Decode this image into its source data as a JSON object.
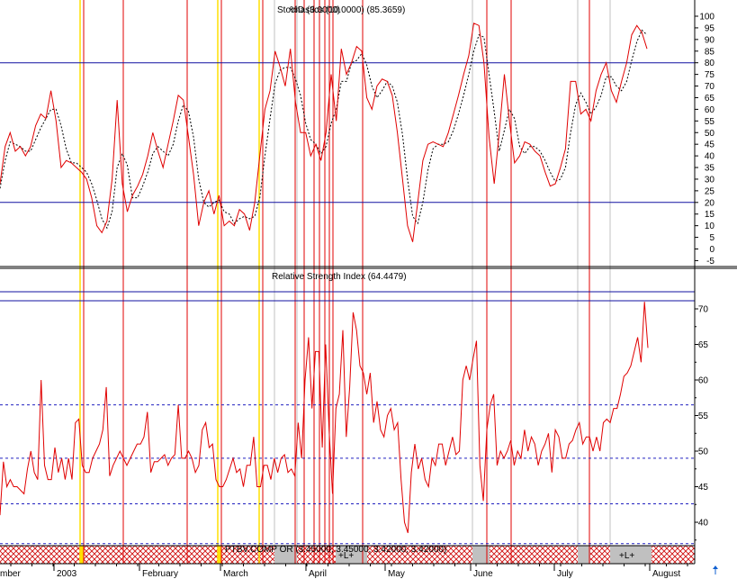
{
  "chart_data": [
    {
      "type": "line",
      "title": "Stochastics (10.0000) (85.3659)",
      "title_overlap": "%D (3.0000)",
      "y_ticks": [
        100,
        95,
        90,
        85,
        80,
        75,
        70,
        65,
        60,
        55,
        50,
        45,
        40,
        35,
        30,
        25,
        20,
        15,
        10,
        5,
        0,
        -5
      ],
      "ylim": [
        -8,
        103
      ],
      "reference_lines": [
        80,
        20
      ],
      "series": [
        {
          "role": "%K",
          "color": "#e00000",
          "style": "solid",
          "values": [
            28,
            44,
            50,
            42,
            44,
            40,
            44,
            53,
            58,
            56,
            68,
            55,
            35,
            38,
            37,
            35,
            33,
            30,
            22,
            10,
            7,
            12,
            30,
            64,
            28,
            16,
            23,
            27,
            32,
            40,
            50,
            42,
            35,
            45,
            55,
            66,
            64,
            48,
            32,
            10,
            20,
            25,
            15,
            23,
            10,
            12,
            10,
            17,
            15,
            8,
            20,
            40,
            60,
            68,
            85,
            78,
            70,
            86,
            63,
            50,
            50,
            40,
            45,
            38,
            50,
            75,
            55,
            86,
            75,
            80,
            87,
            85,
            65,
            60,
            70,
            73,
            72,
            66,
            50,
            30,
            10,
            3,
            20,
            38,
            45,
            46,
            45,
            44,
            50,
            58,
            66,
            75,
            83,
            97,
            96,
            80,
            48,
            28,
            50,
            75,
            55,
            37,
            40,
            46,
            45,
            42,
            40,
            33,
            27,
            28,
            35,
            43,
            72,
            72,
            58,
            60,
            55,
            68,
            75,
            80,
            68,
            63,
            72,
            80,
            92,
            96,
            93,
            86
          ]
        },
        {
          "role": "%D",
          "color": "#000000",
          "style": "dotted",
          "values": [
            26,
            38,
            46,
            45,
            44,
            42,
            42,
            47,
            52,
            56,
            60,
            60,
            53,
            43,
            37,
            37,
            35,
            33,
            28,
            21,
            13,
            9,
            16,
            35,
            41,
            36,
            22,
            22,
            27,
            33,
            41,
            44,
            42,
            40,
            45,
            55,
            62,
            59,
            48,
            30,
            20,
            18,
            20,
            21,
            16,
            15,
            11,
            13,
            14,
            13,
            14,
            22,
            40,
            56,
            71,
            77,
            78,
            78,
            73,
            66,
            54,
            47,
            45,
            41,
            44,
            54,
            60,
            72,
            72,
            80,
            81,
            84,
            79,
            70,
            65,
            68,
            72,
            70,
            63,
            49,
            30,
            14,
            11,
            20,
            34,
            43,
            45,
            45,
            46,
            51,
            58,
            66,
            75,
            85,
            92,
            91,
            75,
            59,
            42,
            51,
            60,
            56,
            44,
            41,
            44,
            44,
            42,
            38,
            33,
            29,
            30,
            35,
            50,
            62,
            67,
            63,
            58,
            61,
            66,
            74,
            74,
            70,
            68,
            72,
            81,
            89,
            94,
            92
          ]
        }
      ]
    },
    {
      "type": "line",
      "title": "Relative Strength Index (64.4479)",
      "y_ticks": [
        70,
        65,
        60,
        55,
        50,
        45,
        40
      ],
      "ylim": [
        35,
        72.5
      ],
      "reference_lines_solid": [
        71,
        69
      ],
      "reference_lines_dashed": [
        56.5,
        49,
        42.6,
        37
      ],
      "series": [
        {
          "color": "#e00000",
          "values": [
            41,
            48.5,
            45,
            46,
            45,
            45,
            44.5,
            44,
            47.5,
            50,
            47,
            46,
            60,
            48,
            46,
            46,
            50.5,
            47,
            49,
            46,
            49,
            46,
            54,
            54.5,
            48,
            47,
            47,
            49,
            50,
            51,
            53,
            59,
            46.5,
            48,
            49,
            50,
            49,
            48,
            49,
            50,
            51,
            51,
            52,
            55.5,
            47,
            48.5,
            48.5,
            49,
            49.5,
            48,
            49,
            49.5,
            56.5,
            49,
            49,
            50,
            49,
            47,
            48,
            53,
            54,
            50.5,
            51,
            46,
            45,
            45,
            46,
            47.5,
            49,
            47,
            47.5,
            45,
            48,
            48,
            52,
            45,
            45,
            48,
            48,
            46,
            49,
            47,
            49,
            49.5,
            47,
            47.5,
            46.5,
            54,
            49,
            60,
            66,
            56,
            64,
            64,
            50.5,
            65,
            53,
            44,
            56,
            58,
            67,
            52,
            59,
            69.5,
            67,
            62,
            61,
            58,
            61,
            54,
            57,
            53,
            52,
            55,
            56,
            53,
            54,
            46,
            40,
            38.5,
            47,
            51,
            47.5,
            49,
            46,
            45,
            49,
            48,
            51,
            51,
            48,
            50,
            52,
            49.5,
            50,
            60,
            62,
            60,
            63,
            65.5,
            48,
            43,
            53,
            56.5,
            58,
            48,
            50,
            49,
            50,
            51.5,
            48,
            50,
            49,
            53,
            50,
            52,
            51,
            48,
            50,
            51,
            52.5,
            47,
            53,
            52,
            49,
            49,
            51,
            51.5,
            53,
            54,
            51,
            52,
            52,
            50,
            52,
            50,
            54,
            54.5,
            54,
            56,
            56,
            58,
            60.5,
            61,
            62,
            64,
            66,
            62.5,
            71,
            64.5
          ]
        }
      ]
    },
    {
      "type": "table",
      "role": "info-strip",
      "caption": "PTBV.COMP OR (3.45000, 3.45000, 3.42000, 3.42000)",
      "markers": [
        "+L+",
        "+L+"
      ]
    }
  ],
  "x_axis": {
    "labels": [
      "mber",
      "2003",
      "February",
      "March",
      "April",
      "May",
      "June",
      "July",
      "August"
    ]
  },
  "colors": {
    "signal_red": "#e00000",
    "signal_yellow": "#ffe000",
    "guide_gray": "#c0c0c0",
    "reference_blue": "#1010a0",
    "dashed_blue": "#2020c0",
    "strip_red": "#d01010",
    "strip_gray": "#c0c0c0",
    "arrow_blue": "#1060d0"
  },
  "icons": {
    "scroll_arrow": "up-arrow-icon"
  }
}
